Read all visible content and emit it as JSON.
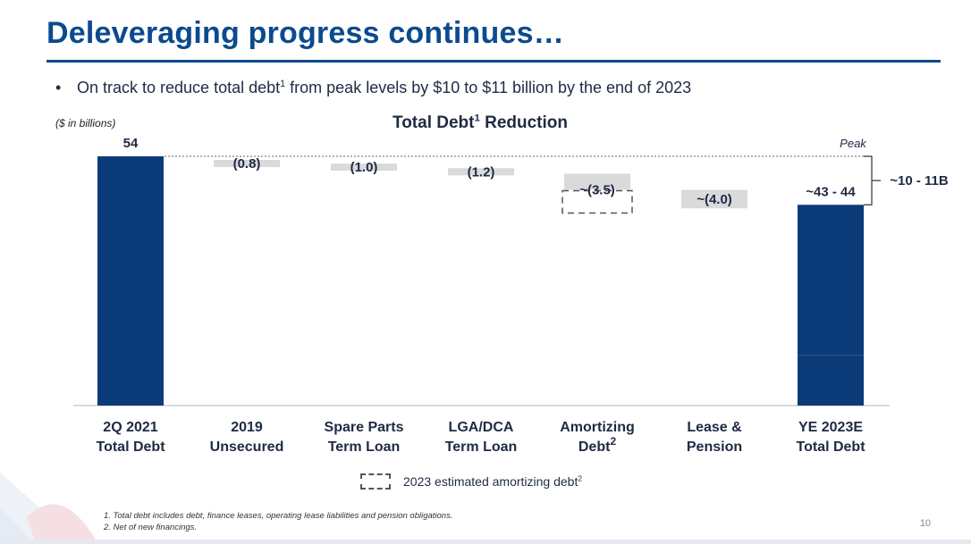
{
  "slide": {
    "title": "Deleveraging progress continues…",
    "bullet_text_before": "On track to reduce total debt",
    "bullet_sup": "1",
    "bullet_text_after": " from peak levels by $10 to $11 billion by the end of 2023",
    "unit_note": "($ in billions)",
    "chart_title": "Total Debt",
    "chart_title_sup": "1",
    "chart_title_suffix": " Reduction",
    "legend_label": "2023 estimated amortizing debt",
    "legend_sup": "2",
    "footnote_1": "1. Total debt includes debt, finance leases, operating lease liabilities and pension obligations.",
    "footnote_2": "2. Net of new financings.",
    "page_number": "10"
  },
  "colors": {
    "primary_navy": "#0b3b78",
    "title_blue": "#0b4a8f",
    "step_gray": "#dadada",
    "text_dark": "#1f2a44"
  },
  "chart_data": {
    "type": "waterfall",
    "categories": [
      [
        "2Q 2021",
        "Total Debt"
      ],
      [
        "2019",
        "Unsecured"
      ],
      [
        "Spare Parts",
        "Term Loan"
      ],
      [
        "LGA/DCA",
        "Term Loan"
      ],
      [
        "Amortizing",
        "Debt"
      ],
      [
        "Lease &",
        "Pension"
      ],
      [
        "YE 2023E",
        "Total Debt"
      ]
    ],
    "category_sups": [
      "",
      "",
      "",
      "",
      "2",
      "",
      ""
    ],
    "steps": [
      {
        "kind": "total",
        "value": 54,
        "label": "54"
      },
      {
        "kind": "decrease",
        "value": 0.8,
        "label": "(0.8)"
      },
      {
        "kind": "decrease",
        "value": 1.0,
        "label": "(1.0)"
      },
      {
        "kind": "decrease",
        "value": 1.2,
        "label": "(1.2)"
      },
      {
        "kind": "decrease",
        "value": 3.5,
        "label": "~(3.5)",
        "dashed_overlay": true
      },
      {
        "kind": "decrease",
        "value": 4.0,
        "label": "~(4.0)"
      },
      {
        "kind": "total",
        "value": 43.5,
        "label": "~43 - 44"
      }
    ],
    "peak_label": "Peak",
    "reduction_label": "~10 - 11B",
    "ylim": [
      0,
      54
    ]
  }
}
